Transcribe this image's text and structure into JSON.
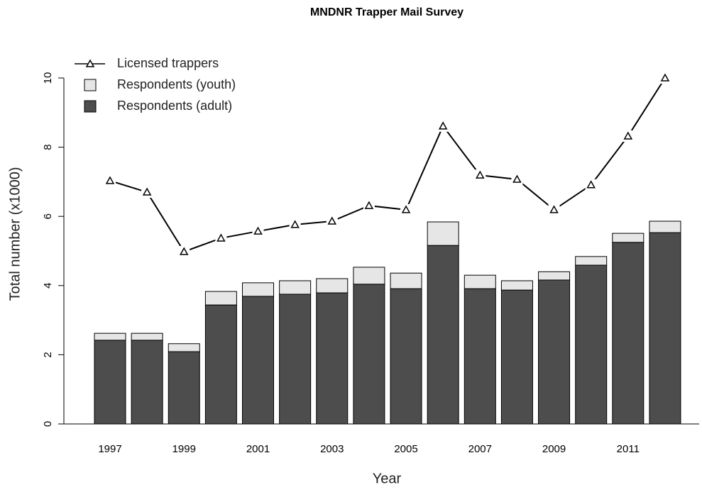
{
  "chart_data": {
    "type": "bar",
    "stacked": true,
    "title": "MNDNR Trapper Mail Survey",
    "x_label": "Year",
    "y_label": "Total number (x1000)",
    "categories": [
      "1997",
      null,
      "1999",
      null,
      "2001",
      null,
      "2003",
      null,
      "2005",
      null,
      "2007",
      null,
      "2009",
      null,
      "2011",
      null
    ],
    "series": [
      {
        "name": "Licensed trappers",
        "type": "line",
        "color": "#000000",
        "values": [
          7.03,
          6.7,
          4.98,
          5.37,
          5.57,
          5.76,
          5.86,
          6.31,
          6.19,
          8.61,
          7.19,
          7.07,
          6.19,
          6.91,
          8.32,
          10.0
        ]
      },
      {
        "name": "Respondents (youth)",
        "type": "bar",
        "color": "#e6e6e6",
        "values": [
          0.2,
          0.2,
          0.23,
          0.39,
          0.39,
          0.39,
          0.41,
          0.49,
          0.45,
          0.68,
          0.39,
          0.27,
          0.24,
          0.25,
          0.26,
          0.33
        ]
      },
      {
        "name": "Respondents (adult)",
        "type": "bar",
        "color": "#4d4d4d",
        "values": [
          2.42,
          2.42,
          2.09,
          3.44,
          3.69,
          3.75,
          3.79,
          4.04,
          3.91,
          5.16,
          3.91,
          3.87,
          4.16,
          4.59,
          5.25,
          5.53
        ]
      }
    ],
    "ylim": [
      0,
      10
    ],
    "yticks": [
      0,
      2,
      4,
      6,
      8,
      10
    ],
    "legend": "top-left"
  }
}
